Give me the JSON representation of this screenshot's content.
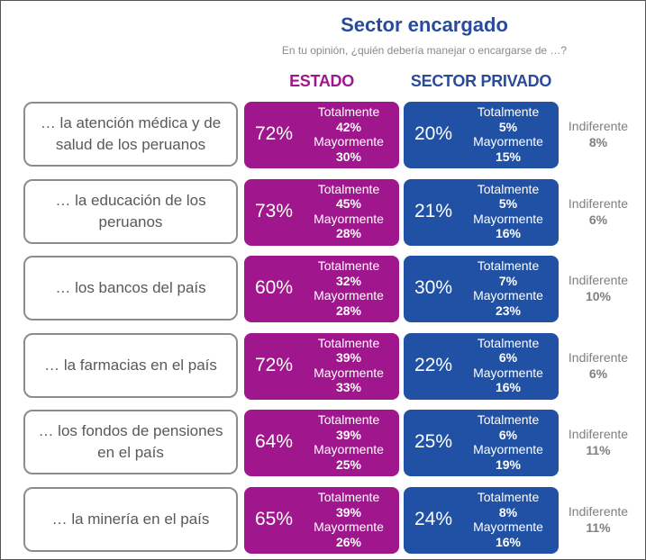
{
  "title": "Sector encargado",
  "subtitle": "En tu opinión, ¿quién debería manejar o encargarse de …?",
  "chart_data": {
    "type": "table",
    "columns": [
      "ESTADO",
      "SECTOR PRIVADO"
    ],
    "breakdown_labels": {
      "totally": "Totalmente",
      "mostly": "Mayormente"
    },
    "indifferent_label": "Indiferente",
    "colors": {
      "estado": "#a0168c",
      "privado": "#2051a4"
    },
    "rows": [
      {
        "label": "… la atención médica y de salud de los peruanos",
        "estado": {
          "total": "72%",
          "totally": "42%",
          "mostly": "30%"
        },
        "privado": {
          "total": "20%",
          "totally": "5%",
          "mostly": "15%"
        },
        "indifferent": "8%"
      },
      {
        "label": "… la educación de los peruanos",
        "estado": {
          "total": "73%",
          "totally": "45%",
          "mostly": "28%"
        },
        "privado": {
          "total": "21%",
          "totally": "5%",
          "mostly": "16%"
        },
        "indifferent": "6%"
      },
      {
        "label": "… los bancos del país",
        "estado": {
          "total": "60%",
          "totally": "32%",
          "mostly": "28%"
        },
        "privado": {
          "total": "30%",
          "totally": "7%",
          "mostly": "23%"
        },
        "indifferent": "10%"
      },
      {
        "label": "… la farmacias en el país",
        "estado": {
          "total": "72%",
          "totally": "39%",
          "mostly": "33%"
        },
        "privado": {
          "total": "22%",
          "totally": "6%",
          "mostly": "16%"
        },
        "indifferent": "6%"
      },
      {
        "label": "… los fondos de pensiones en el país",
        "estado": {
          "total": "64%",
          "totally": "39%",
          "mostly": "25%"
        },
        "privado": {
          "total": "25%",
          "totally": "6%",
          "mostly": "19%"
        },
        "indifferent": "11%"
      },
      {
        "label": "… la minería en el país",
        "estado": {
          "total": "65%",
          "totally": "39%",
          "mostly": "26%"
        },
        "privado": {
          "total": "24%",
          "totally": "8%",
          "mostly": "16%"
        },
        "indifferent": "11%"
      }
    ]
  }
}
